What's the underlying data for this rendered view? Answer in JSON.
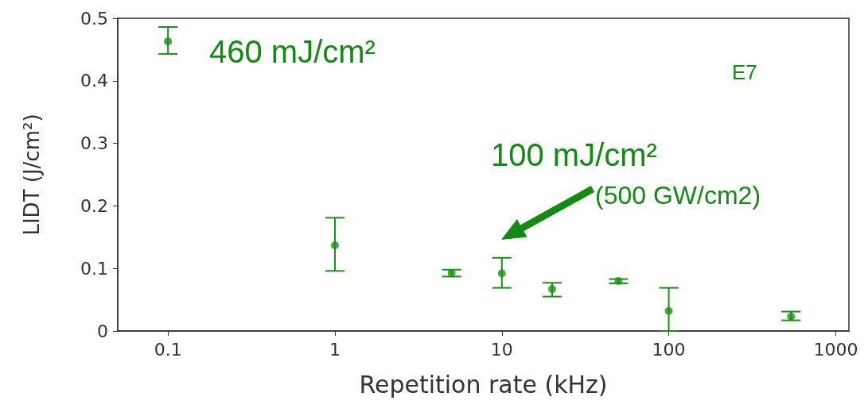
{
  "chart_data": {
    "type": "scatter",
    "xlabel": "Repetition rate (kHz)",
    "ylabel": "LIDT (J/cm²)",
    "x": [
      0.1,
      1,
      5,
      10,
      20,
      50,
      100,
      540
    ],
    "values": [
      0.463,
      0.137,
      0.093,
      0.092,
      0.067,
      0.08,
      0.032,
      0.023
    ],
    "errors": [
      [
        0.443,
        0.486
      ],
      [
        0.096,
        0.181
      ],
      [
        0.087,
        0.098
      ],
      [
        0.069,
        0.117
      ],
      [
        0.055,
        0.077
      ],
      [
        0.076,
        0.083
      ],
      [
        0,
        0.069
      ],
      [
        0.017,
        0.031
      ]
    ],
    "color": "#1a8f1a",
    "marker": "circle",
    "log": "x",
    "xlim": [
      0.05,
      1200
    ],
    "xticks": [
      0.1,
      1,
      10,
      100,
      1000
    ],
    "ylim": [
      0,
      0.5
    ],
    "yticks": [
      0,
      0.1,
      0.2,
      0.3,
      0.4,
      0.5
    ],
    "grid": false,
    "annotations": [
      "460 mJ/cm²",
      "E7",
      "100 mJ/cm²",
      "(500 GW/cm2)"
    ]
  }
}
